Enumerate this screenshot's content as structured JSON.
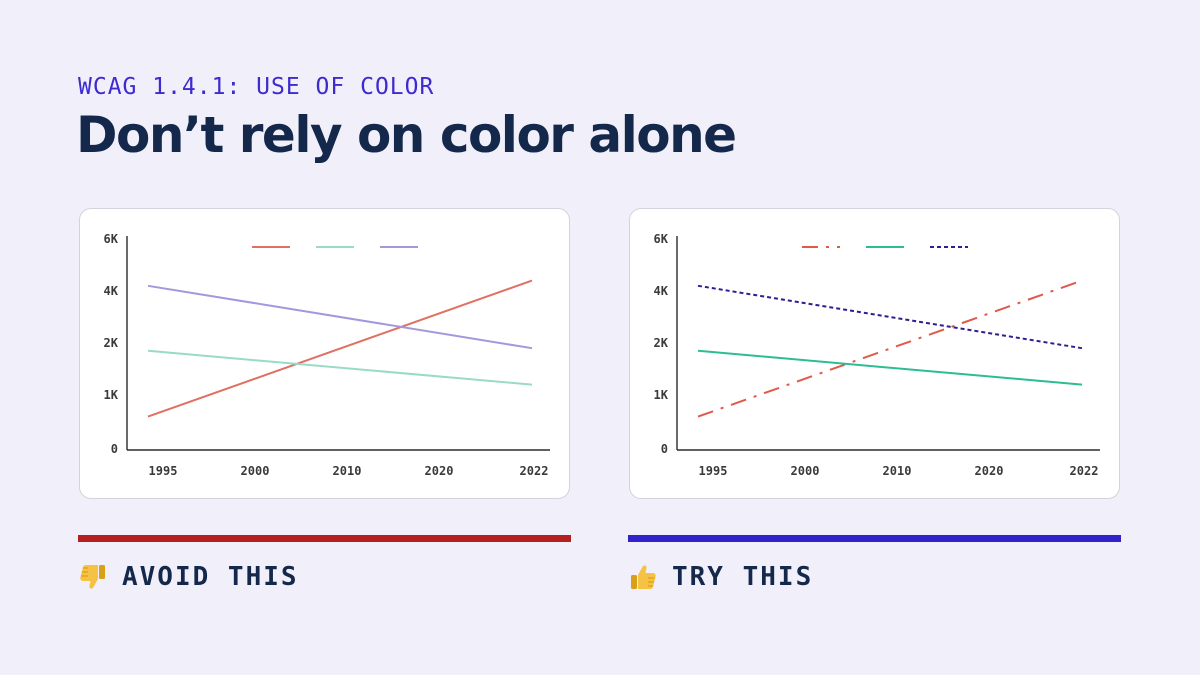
{
  "eyebrow": "WCAG 1.4.1: USE OF COLOR",
  "headline": "Don’t rely on color alone",
  "panels": {
    "avoid": {
      "label": "AVOID THIS",
      "icon": "thumbs-down-icon",
      "rule_color": "#b51f1f"
    },
    "try": {
      "label": "TRY THIS",
      "icon": "thumbs-up-icon",
      "rule_color": "#3322cc"
    }
  },
  "chart_data": [
    {
      "type": "line",
      "panel": "avoid",
      "x": [
        "1995",
        "2000",
        "2010",
        "2020",
        "2022"
      ],
      "y_ticks": [
        "0",
        "1K",
        "2K",
        "4K",
        "6K"
      ],
      "legend": "top-center",
      "grid": false,
      "series": [
        {
          "color": "#e07062",
          "dash": "solid",
          "values": [
            0.6,
            1.2,
            1.9,
            2.8,
            4.4
          ]
        },
        {
          "color": "#98dbc7",
          "dash": "solid",
          "values": [
            1.85,
            1.7,
            1.5,
            1.35,
            1.2
          ]
        },
        {
          "color": "#a597dc",
          "dash": "solid",
          "values": [
            4.2,
            3.7,
            3.2,
            2.7,
            1.9
          ]
        }
      ]
    },
    {
      "type": "line",
      "panel": "try",
      "x": [
        "1995",
        "2000",
        "2010",
        "2020",
        "2022"
      ],
      "y_ticks": [
        "0",
        "1K",
        "2K",
        "4K",
        "6K"
      ],
      "legend": "top-center",
      "grid": false,
      "series": [
        {
          "color": "#e05a4a",
          "dash": "dash-dot",
          "values": [
            0.6,
            1.2,
            1.9,
            2.8,
            4.4
          ]
        },
        {
          "color": "#2dbd93",
          "dash": "solid",
          "values": [
            1.85,
            1.7,
            1.5,
            1.35,
            1.2
          ]
        },
        {
          "color": "#2a2091",
          "dash": "dotted",
          "values": [
            4.2,
            3.7,
            3.2,
            2.7,
            1.9
          ]
        }
      ]
    }
  ]
}
